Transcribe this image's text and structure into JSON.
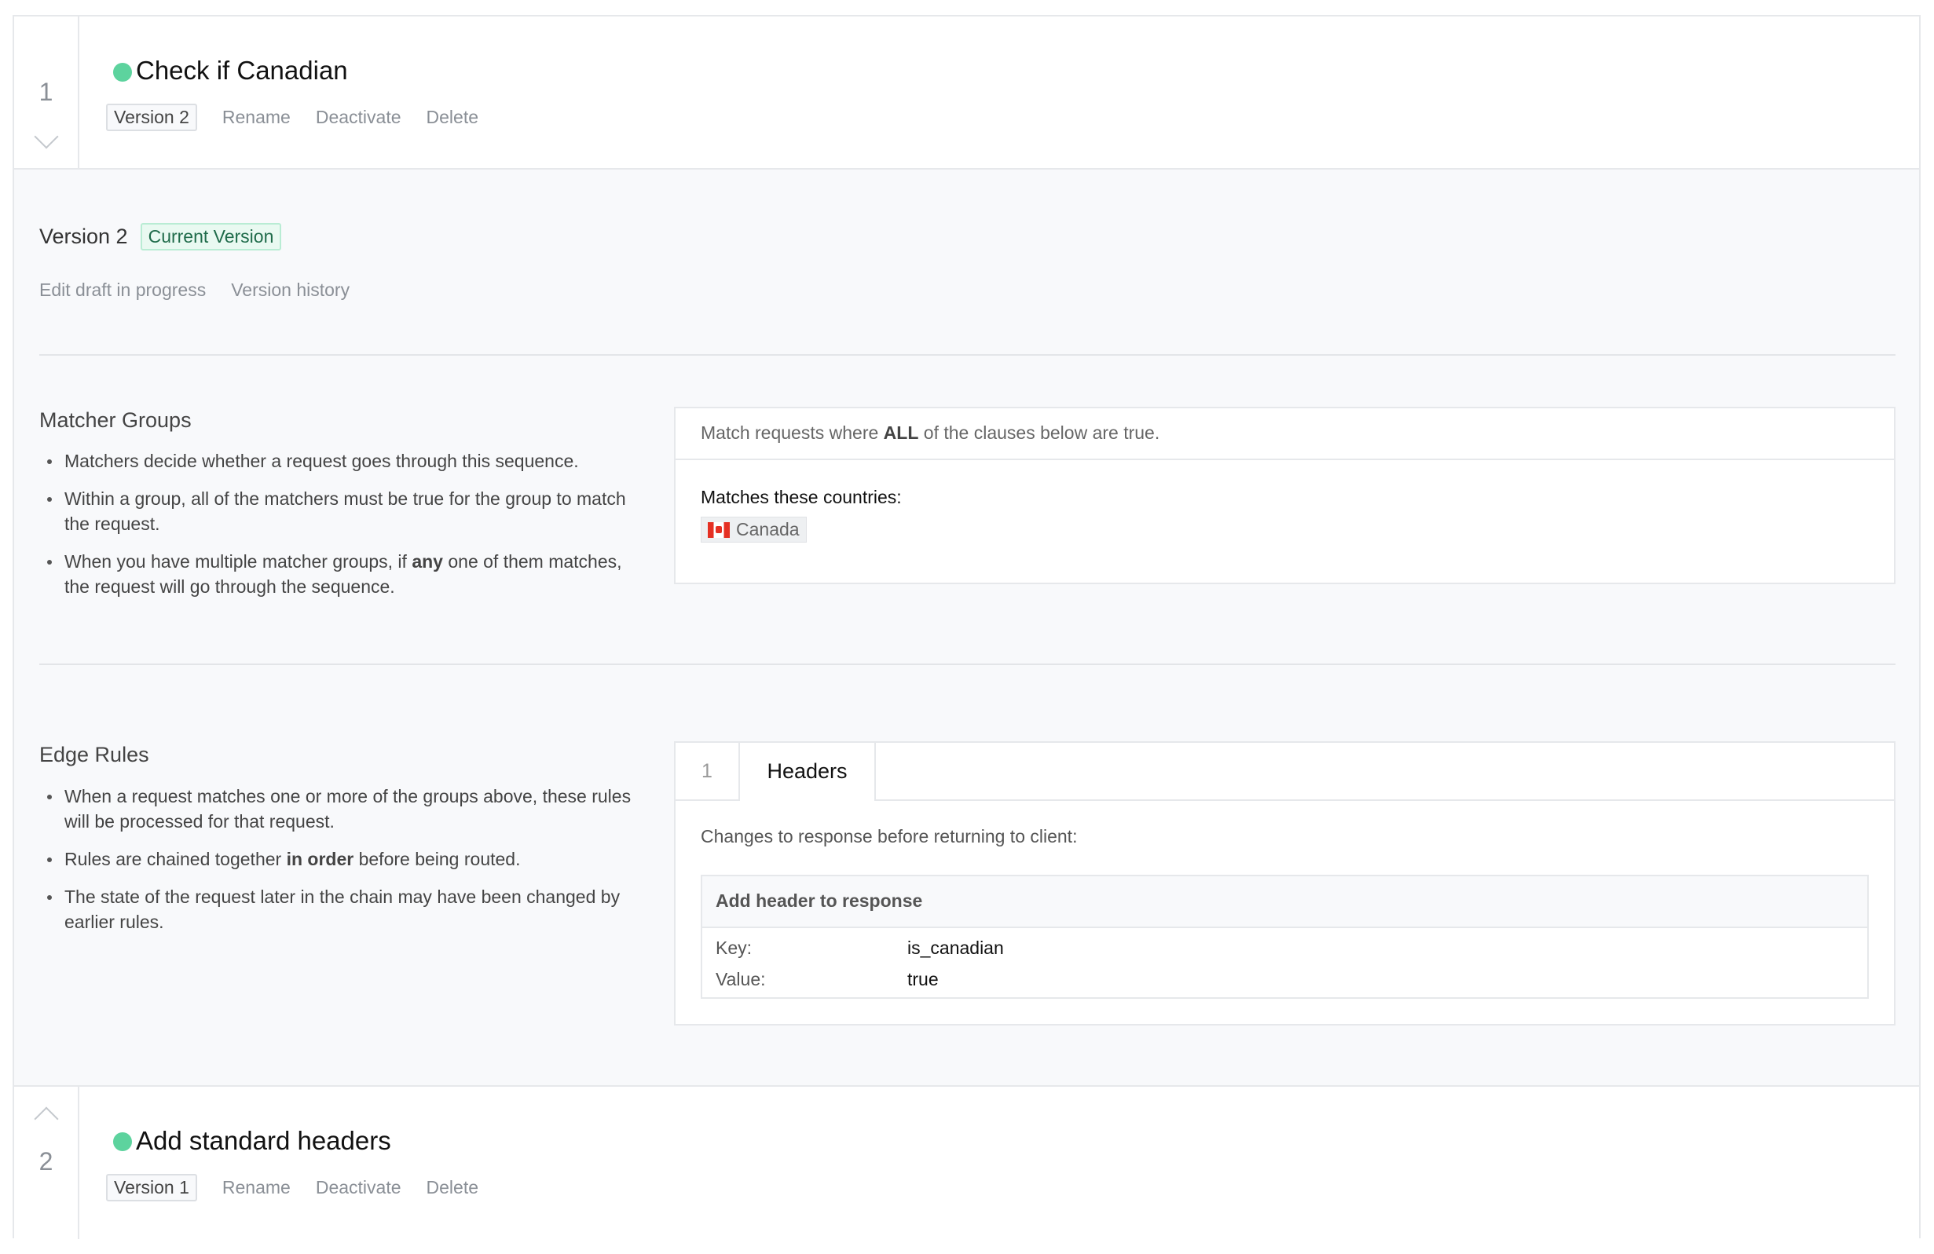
{
  "sequences": [
    {
      "number": "1",
      "title": "Check if Canadian",
      "status_color": "#5dd39e",
      "version": "Version 2",
      "actions": [
        "Rename",
        "Deactivate",
        "Delete"
      ]
    },
    {
      "number": "2",
      "title": "Add standard headers",
      "status_color": "#5dd39e",
      "version": "Version 1",
      "actions": [
        "Rename",
        "Deactivate",
        "Delete"
      ]
    }
  ],
  "detail": {
    "version_title": "Version 2",
    "current_badge": "Current Version",
    "links": [
      "Edit draft in progress",
      "Version history"
    ],
    "matcher": {
      "heading": "Matcher Groups",
      "bullets": [
        [
          "Matchers decide whether a request goes through this sequence.",
          "",
          ""
        ],
        [
          "Within a group, all of the matchers must be true for the group to match the request.",
          "",
          ""
        ],
        [
          "When you have multiple matcher groups, if ",
          "any",
          " one of them matches, the request will go through the sequence."
        ]
      ],
      "panel_pre": "Match requests where ",
      "panel_bold": "ALL",
      "panel_post": " of the clauses below are true.",
      "countries_label": "Matches these countries:",
      "country": "Canada"
    },
    "edge": {
      "heading": "Edge Rules",
      "bullets": [
        [
          "When a request matches one or more of the groups above, these rules will be processed for that request.",
          "",
          ""
        ],
        [
          "Rules are chained together ",
          "in order",
          " before being routed."
        ],
        [
          "The state of the request later in the chain may have been changed by earlier rules.",
          "",
          ""
        ]
      ],
      "tab_number": "1",
      "tab_label": "Headers",
      "description": "Changes to response before returning to client:",
      "box_title": "Add header to response",
      "key_label": "Key:",
      "key_value": "is_canadian",
      "value_label": "Value:",
      "value_value": "true"
    }
  }
}
